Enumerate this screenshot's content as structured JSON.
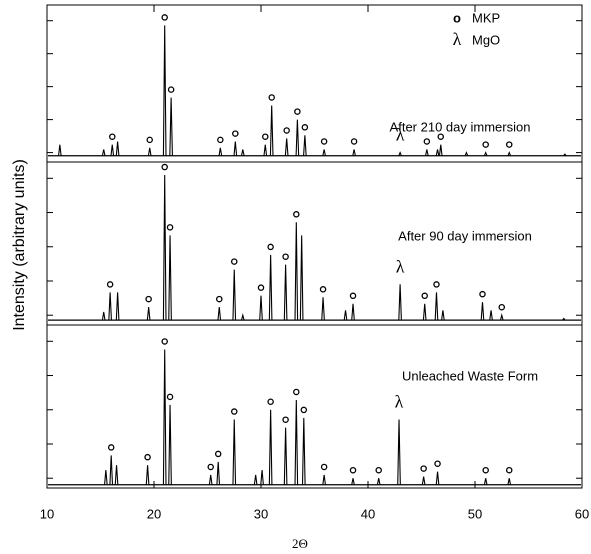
{
  "chart_data": [
    {
      "type": "spectrum",
      "annotation": "After 210 day immersion",
      "xlim": [
        10,
        60
      ],
      "ylim": [
        0,
        100
      ],
      "yticks": [
        6,
        27,
        48,
        69,
        90
      ],
      "baseline": 4,
      "color": "#000000",
      "legend": [
        {
          "symbol": "o",
          "label": "MKP"
        },
        {
          "symbol": "λ",
          "label": "MgO"
        }
      ],
      "x": [
        11.2,
        15.3,
        16.1,
        16.6,
        19.6,
        21.0,
        21.6,
        26.2,
        27.6,
        28.3,
        30.4,
        31.0,
        32.4,
        33.4,
        34.1,
        35.9,
        38.7,
        43.0,
        45.5,
        46.5,
        46.8,
        49.2,
        51.0,
        53.2,
        58.4
      ],
      "values": [
        11,
        8,
        11,
        13,
        9,
        87,
        41,
        9,
        13,
        8,
        11,
        36,
        15,
        27,
        17,
        8,
        8,
        6,
        8,
        8,
        11,
        6,
        6,
        6,
        5
      ],
      "mkp_x": [
        16.1,
        19.6,
        21.0,
        21.6,
        26.2,
        27.6,
        30.4,
        31.0,
        32.4,
        33.4,
        34.1,
        35.9,
        38.7,
        45.5,
        46.8,
        51.0,
        53.2
      ],
      "mgo_x": [
        43.0
      ]
    },
    {
      "type": "spectrum",
      "annotation": "After 90 day immersion",
      "xlim": [
        10,
        60
      ],
      "ylim": [
        0,
        100
      ],
      "yticks": [
        6,
        27,
        48,
        69,
        90
      ],
      "baseline": 3,
      "color": "#000000",
      "y_label": "Intensity (arbitrary units)",
      "x": [
        15.3,
        15.9,
        16.6,
        19.5,
        21.0,
        21.5,
        26.1,
        27.5,
        28.3,
        30.0,
        30.9,
        32.3,
        33.3,
        33.8,
        35.8,
        37.9,
        38.6,
        43.0,
        45.3,
        46.4,
        47.0,
        50.7,
        51.5,
        52.5,
        58.3
      ],
      "values": [
        8,
        20,
        20,
        11,
        92,
        55,
        11,
        34,
        6,
        18,
        43,
        37,
        63,
        55,
        17,
        9,
        13,
        25,
        13,
        20,
        9,
        14,
        9,
        6,
        4
      ],
      "mkp_x": [
        15.9,
        19.5,
        21.0,
        21.5,
        26.1,
        27.5,
        30.0,
        30.9,
        32.3,
        33.3,
        35.8,
        38.6,
        45.3,
        46.4,
        50.7,
        52.5
      ],
      "mgo_x": [
        43.0
      ]
    },
    {
      "type": "spectrum",
      "annotation": "Unleached Waste Form",
      "xlim": [
        10,
        60
      ],
      "ylim": [
        0,
        100
      ],
      "yticks": [
        6,
        27,
        48,
        69,
        90
      ],
      "baseline": 2,
      "color": "#000000",
      "xticks": [
        10,
        20,
        30,
        40,
        50,
        60
      ],
      "x_label": "2Θ",
      "x": [
        15.5,
        16.0,
        16.5,
        19.4,
        21.0,
        21.5,
        25.3,
        26.0,
        27.5,
        29.5,
        30.1,
        30.9,
        32.3,
        33.3,
        34.0,
        35.9,
        38.6,
        41.0,
        42.9,
        45.2,
        46.5,
        51.0,
        53.2
      ],
      "values": [
        11,
        20,
        14,
        14,
        85,
        51,
        8,
        16,
        42,
        8,
        11,
        48,
        37,
        54,
        43,
        8,
        6,
        6,
        42,
        7,
        10,
        6,
        6
      ],
      "mkp_x": [
        16.0,
        19.4,
        21.0,
        21.5,
        25.3,
        26.0,
        27.5,
        30.9,
        32.3,
        33.3,
        34.0,
        35.9,
        38.6,
        41.0,
        45.2,
        46.5,
        51.0,
        53.2
      ],
      "mgo_x": [
        42.9
      ]
    }
  ]
}
